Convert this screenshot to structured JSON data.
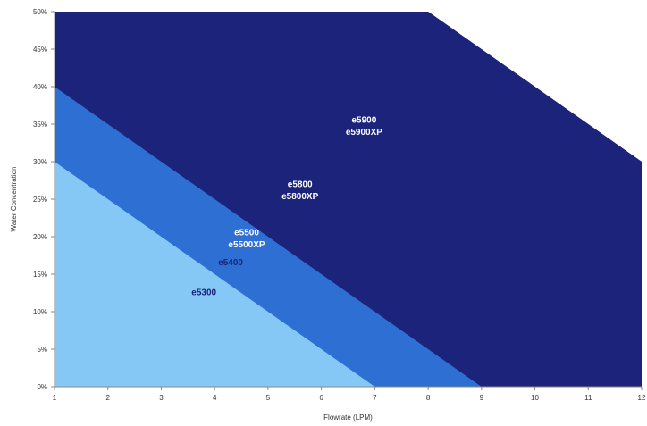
{
  "chart_data": {
    "type": "area",
    "title": "",
    "xlabel": "Flowrate (LPM)",
    "ylabel": "Water Concentration",
    "xlim": [
      1,
      12
    ],
    "ylim": [
      0,
      50
    ],
    "x_ticks": [
      1,
      2,
      3,
      4,
      5,
      6,
      7,
      8,
      9,
      10,
      11,
      12
    ],
    "y_ticks": [
      0,
      5,
      10,
      15,
      20,
      25,
      30,
      35,
      40,
      45,
      50
    ],
    "y_tick_suffix": "%",
    "grid": false,
    "legend": "none",
    "regions": [
      {
        "color": "#1b237a",
        "polygon": [
          [
            1,
            0
          ],
          [
            1,
            50
          ],
          [
            8,
            50
          ],
          [
            12,
            30
          ],
          [
            12,
            0
          ]
        ],
        "labels": [
          {
            "text": "e5900",
            "x": 6.8,
            "y": 35.2,
            "color": "#ffffff"
          },
          {
            "text": "e5900XP",
            "x": 6.8,
            "y": 33.6,
            "color": "#ffffff"
          }
        ]
      },
      {
        "color": "#1b237a",
        "polygon": [
          [
            1,
            0
          ],
          [
            1,
            50
          ],
          [
            8,
            50
          ],
          [
            12,
            30
          ],
          [
            12,
            0
          ]
        ],
        "labels": [
          {
            "text": "e5800",
            "x": 5.6,
            "y": 26.6,
            "color": "#ffffff"
          },
          {
            "text": "e5800XP",
            "x": 5.6,
            "y": 25.0,
            "color": "#ffffff"
          }
        ]
      },
      {
        "color": "#2e6fd4",
        "polygon": [
          [
            1,
            0
          ],
          [
            1,
            40
          ],
          [
            9,
            0
          ]
        ],
        "labels": [
          {
            "text": "e5500",
            "x": 4.6,
            "y": 20.2,
            "color": "#ffffff"
          },
          {
            "text": "e5500XP",
            "x": 4.6,
            "y": 18.6,
            "color": "#ffffff"
          },
          {
            "text": "e5400",
            "x": 4.3,
            "y": 16.2,
            "color": "#1b237a"
          }
        ]
      },
      {
        "color": "#86c8f5",
        "polygon": [
          [
            1,
            0
          ],
          [
            1,
            30
          ],
          [
            7,
            0
          ]
        ],
        "labels": [
          {
            "text": "e5300",
            "x": 3.8,
            "y": 12.2,
            "color": "#1b237a"
          }
        ]
      }
    ]
  }
}
